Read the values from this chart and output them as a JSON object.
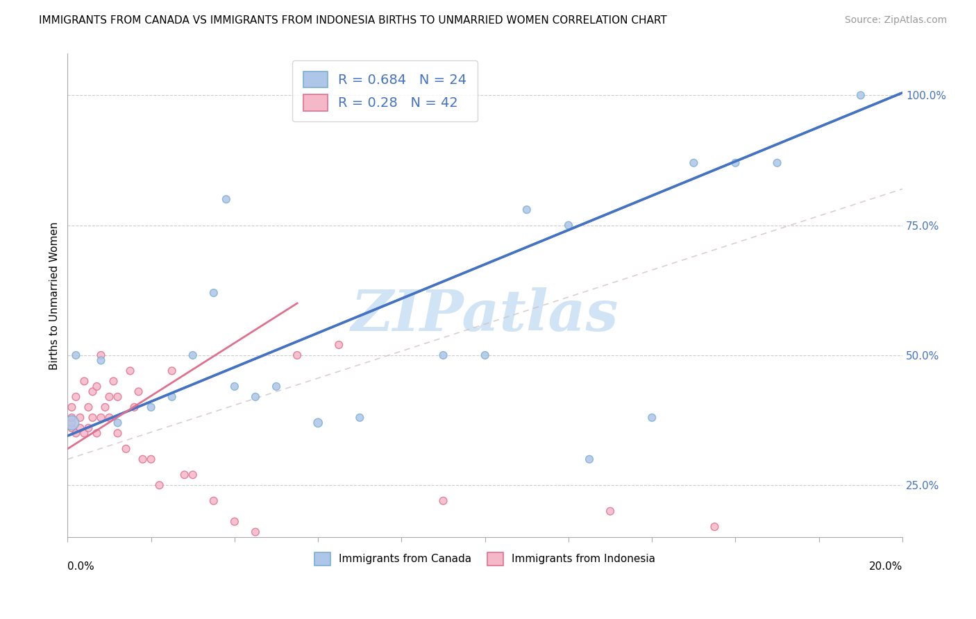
{
  "title": "IMMIGRANTS FROM CANADA VS IMMIGRANTS FROM INDONESIA BIRTHS TO UNMARRIED WOMEN CORRELATION CHART",
  "source": "Source: ZipAtlas.com",
  "ylabel": "Births to Unmarried Women",
  "xlim": [
    0.0,
    0.2
  ],
  "ylim": [
    0.15,
    1.08
  ],
  "canada_color": "#aec6e8",
  "canada_edge": "#7aafd4",
  "indonesia_color": "#f5b8c8",
  "indonesia_edge": "#e07090",
  "trend_canada_color": "#4472c4",
  "trend_indonesia_color": "#e07090",
  "R_canada": 0.684,
  "N_canada": 24,
  "R_indonesia": 0.28,
  "N_indonesia": 42,
  "watermark": "ZIPatlas",
  "watermark_color": "#d0e4f5",
  "canada_x": [
    0.001,
    0.002,
    0.008,
    0.012,
    0.02,
    0.025,
    0.03,
    0.035,
    0.038,
    0.04,
    0.045,
    0.05,
    0.06,
    0.07,
    0.09,
    0.1,
    0.11,
    0.12,
    0.125,
    0.14,
    0.15,
    0.16,
    0.17,
    0.19
  ],
  "canada_y": [
    0.37,
    0.5,
    0.49,
    0.37,
    0.4,
    0.42,
    0.5,
    0.62,
    0.8,
    0.44,
    0.42,
    0.44,
    0.37,
    0.38,
    0.5,
    0.5,
    0.78,
    0.75,
    0.3,
    0.38,
    0.87,
    0.87,
    0.87,
    1.0
  ],
  "canada_size": [
    220,
    60,
    60,
    60,
    60,
    60,
    60,
    60,
    60,
    60,
    60,
    60,
    80,
    60,
    60,
    60,
    60,
    60,
    60,
    60,
    60,
    60,
    60,
    60
  ],
  "indonesia_x": [
    0.001,
    0.001,
    0.001,
    0.001,
    0.002,
    0.002,
    0.003,
    0.003,
    0.004,
    0.004,
    0.005,
    0.005,
    0.006,
    0.006,
    0.007,
    0.007,
    0.008,
    0.008,
    0.009,
    0.01,
    0.01,
    0.011,
    0.012,
    0.012,
    0.014,
    0.015,
    0.016,
    0.017,
    0.018,
    0.02,
    0.022,
    0.025,
    0.028,
    0.03,
    0.035,
    0.04,
    0.045,
    0.055,
    0.065,
    0.09,
    0.13,
    0.155
  ],
  "indonesia_y": [
    0.36,
    0.37,
    0.38,
    0.4,
    0.35,
    0.42,
    0.36,
    0.38,
    0.35,
    0.45,
    0.36,
    0.4,
    0.38,
    0.43,
    0.35,
    0.44,
    0.38,
    0.5,
    0.4,
    0.38,
    0.42,
    0.45,
    0.35,
    0.42,
    0.32,
    0.47,
    0.4,
    0.43,
    0.3,
    0.3,
    0.25,
    0.47,
    0.27,
    0.27,
    0.22,
    0.18,
    0.16,
    0.5,
    0.52,
    0.22,
    0.2,
    0.17
  ],
  "indonesia_size": [
    60,
    60,
    60,
    60,
    60,
    60,
    60,
    60,
    60,
    60,
    60,
    60,
    60,
    60,
    60,
    60,
    60,
    60,
    60,
    60,
    60,
    60,
    60,
    60,
    60,
    60,
    60,
    60,
    60,
    60,
    60,
    60,
    60,
    60,
    60,
    60,
    60,
    60,
    60,
    60,
    60,
    60
  ],
  "trend_canada_x0": 0.0,
  "trend_canada_y0": 0.345,
  "trend_canada_x1": 0.2,
  "trend_canada_y1": 1.005,
  "trend_indonesia_x0": 0.0,
  "trend_indonesia_y0": 0.32,
  "trend_indonesia_x1": 0.055,
  "trend_indonesia_y1": 0.6,
  "trend_indonesia_dashed_x0": 0.0,
  "trend_indonesia_dashed_y0": 0.3,
  "trend_indonesia_dashed_x1": 0.2,
  "trend_indonesia_dashed_y1": 0.82,
  "ytick_positions": [
    0.25,
    0.5,
    0.75,
    1.0
  ],
  "ytick_labels": [
    "25.0%",
    "50.0%",
    "75.0%",
    "100.0%"
  ]
}
